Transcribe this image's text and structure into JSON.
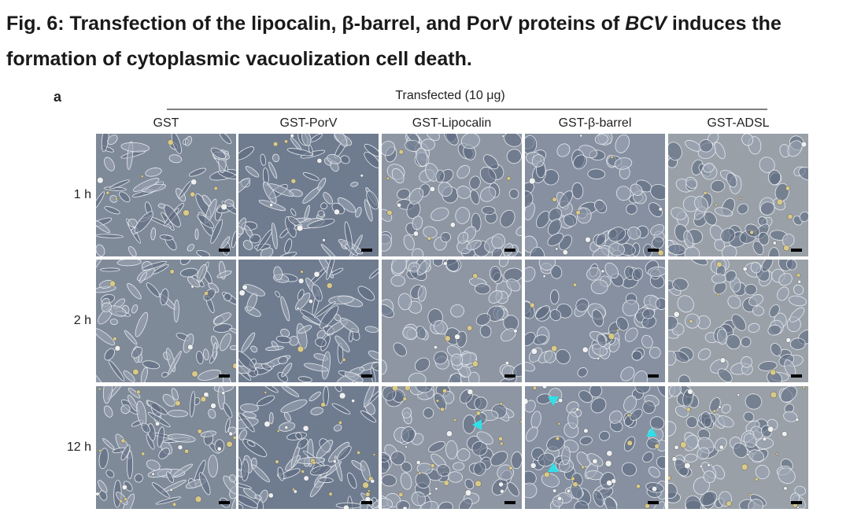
{
  "title": {
    "text": "Fig. 6: Transfection of the lipocalin, β-barrel, and PorV proteins of ",
    "italic": "BCV",
    "text_end": " induces the formation of cytoplasmic vacuolization cell death."
  },
  "figure": {
    "panel_label": "a",
    "group_label": "Transfected (10 μg)",
    "columns": [
      "GST",
      "GST-PorV",
      "GST-Lipocalin",
      "GST-β-barrel",
      "GST-ADSL"
    ],
    "rows": [
      "1 h",
      "2 h",
      "12 h"
    ]
  }
}
